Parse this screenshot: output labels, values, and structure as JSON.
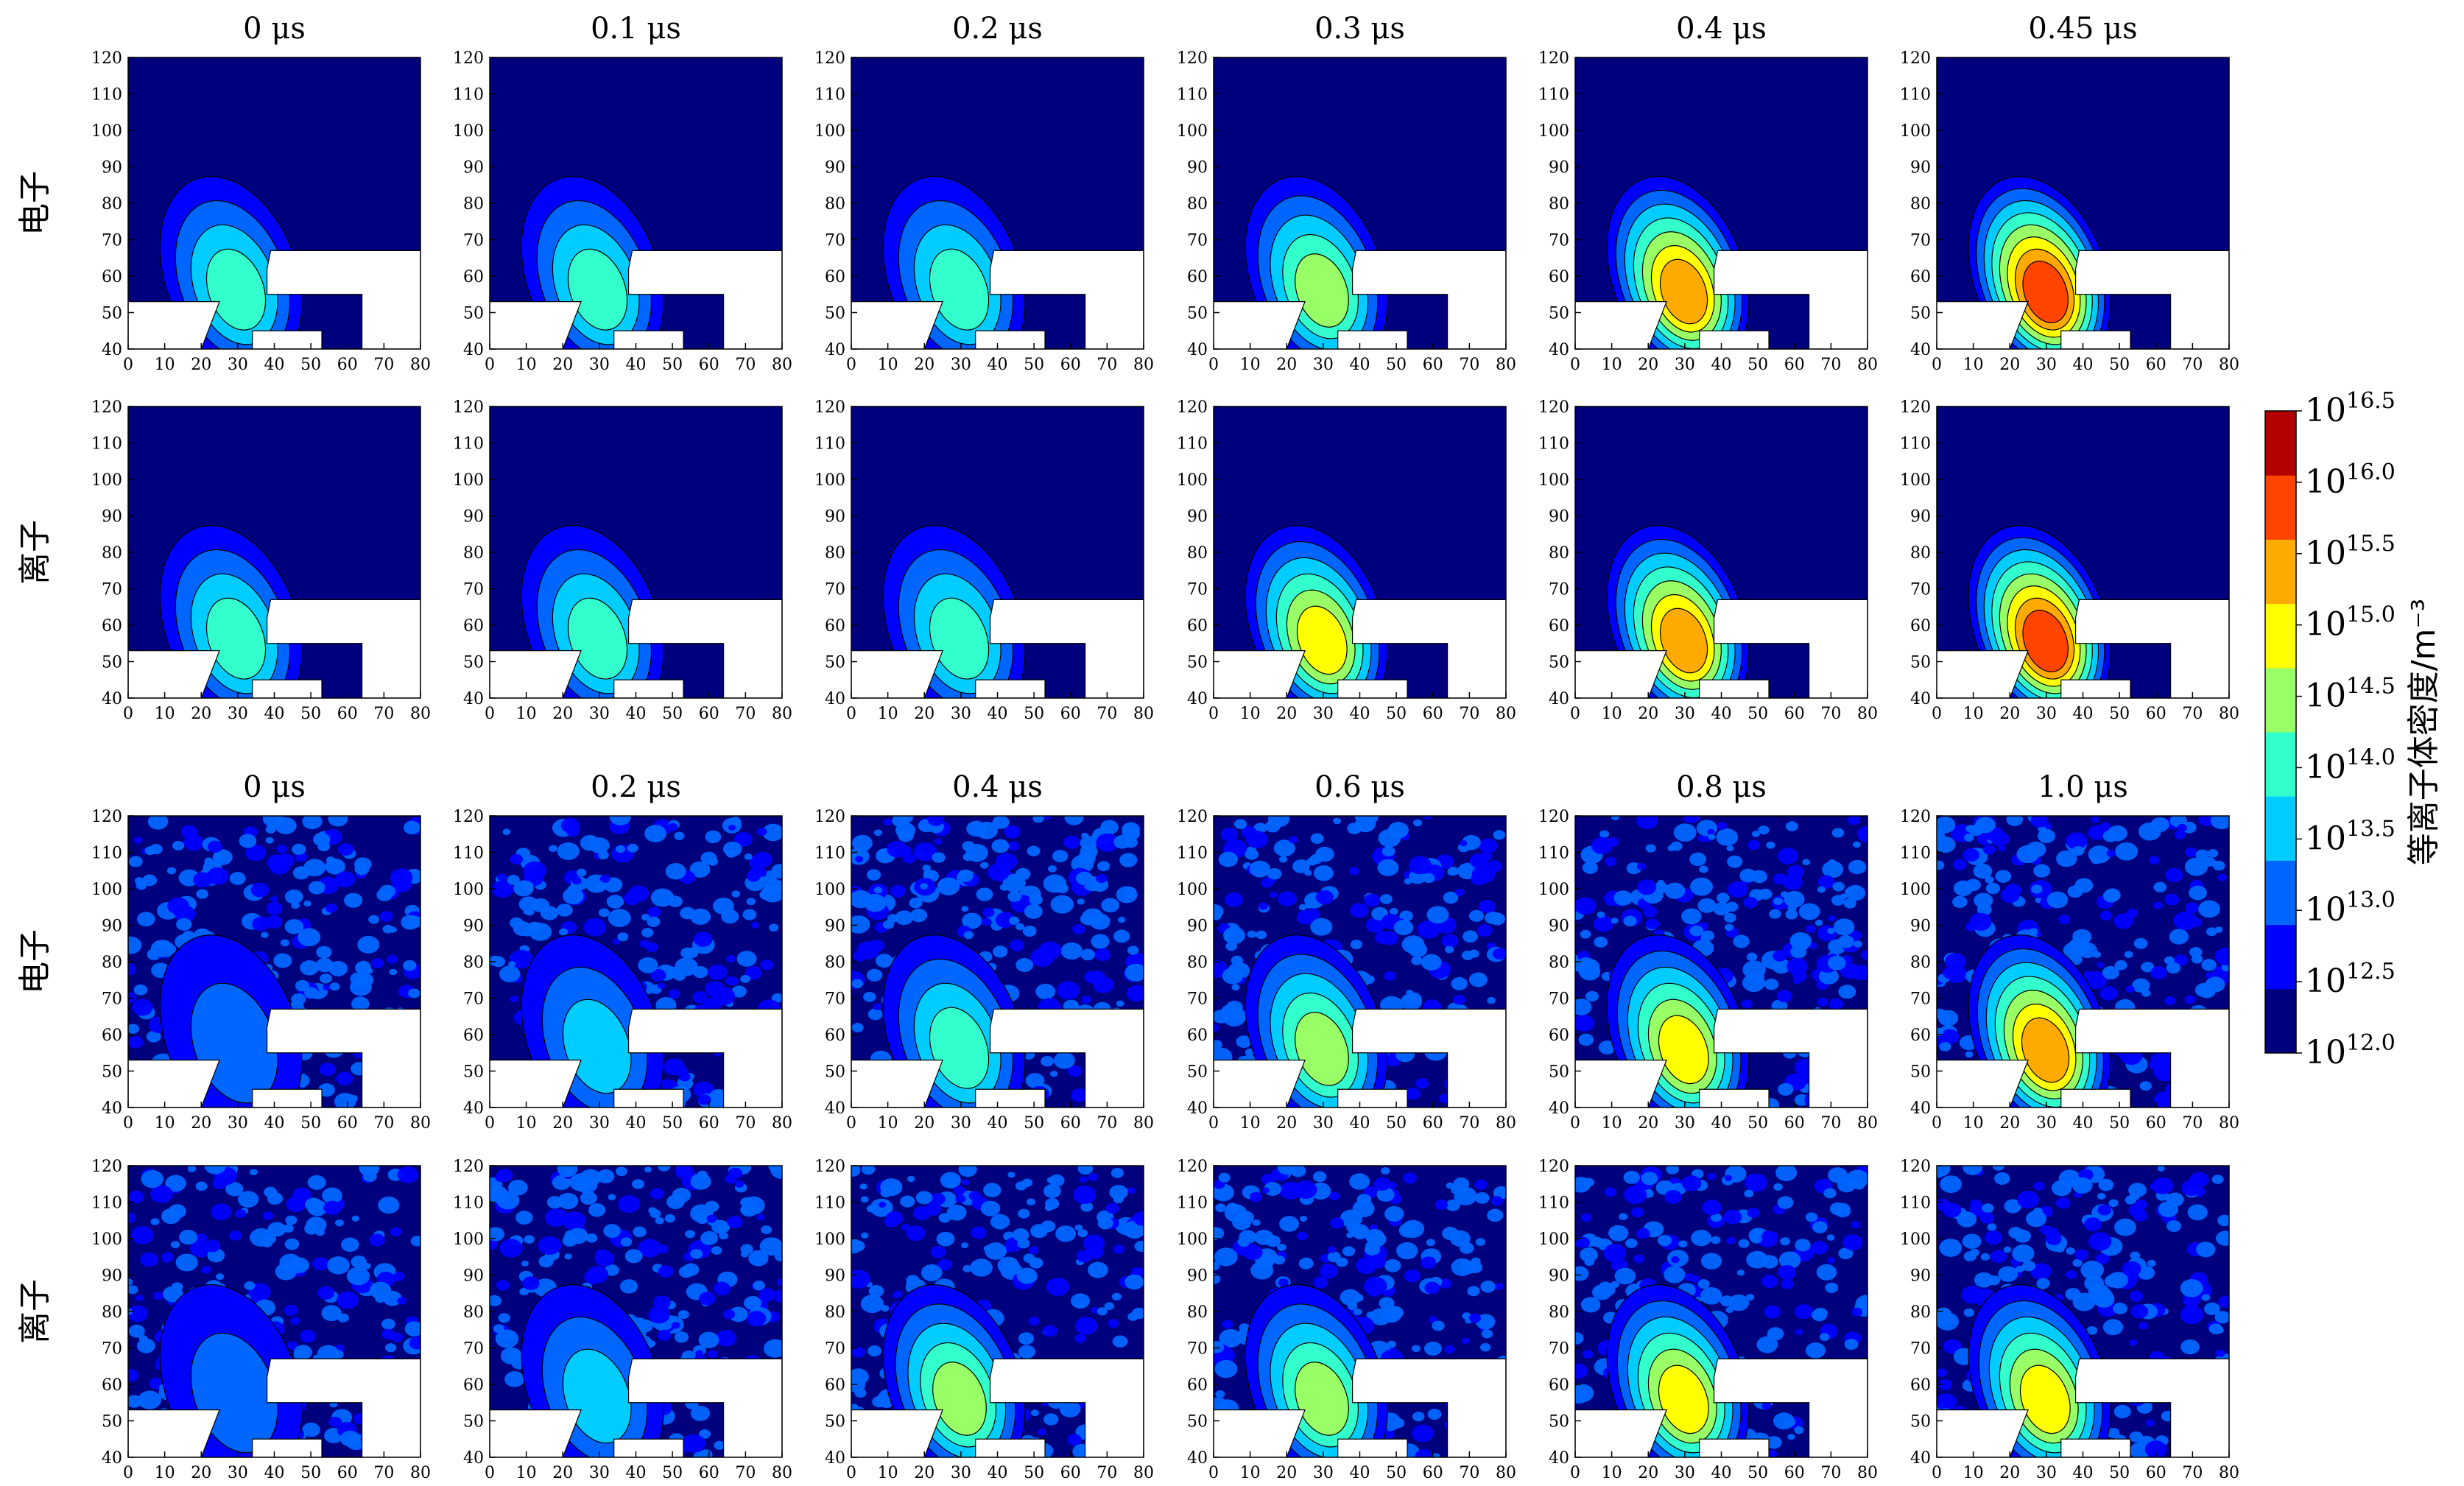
{
  "chart_data": {
    "type": "heatmap",
    "layout": "4 rows x 6 columns of filled-contour panels sharing one colorbar",
    "x_ticks": [
      0,
      10,
      20,
      30,
      40,
      50,
      60,
      70,
      80
    ],
    "y_ticks": [
      40,
      50,
      60,
      70,
      80,
      90,
      100,
      110,
      120
    ],
    "xlim": [
      0,
      80
    ],
    "ylim": [
      40,
      120
    ],
    "colorbar": {
      "label": "等离子体密度/m⁻³",
      "scale": "log10",
      "range": [
        12.0,
        16.5
      ],
      "tick_exponents": [
        "12.0",
        "12.5",
        "13.0",
        "13.5",
        "14.0",
        "14.5",
        "15.0",
        "15.5",
        "16.0",
        "16.5"
      ],
      "tick_base": "10",
      "colors": [
        "#00007f",
        "#0000ff",
        "#0066ff",
        "#00ccff",
        "#33ffcc",
        "#99ff66",
        "#ffff00",
        "#ffaa00",
        "#ff4400",
        "#b30000"
      ]
    },
    "groups": [
      {
        "times": [
          "0 μs",
          "0.1 μs",
          "0.2 μs",
          "0.3 μs",
          "0.4 μs",
          "0.45 μs"
        ],
        "rows": [
          {
            "label": "电子",
            "peak_log_density": [
              14.0,
              14.1,
              14.3,
              14.7,
              15.6,
              16.2
            ]
          },
          {
            "label": "离子",
            "peak_log_density": [
              14.0,
              14.1,
              14.4,
              15.3,
              15.7,
              16.3
            ]
          }
        ]
      },
      {
        "times": [
          "0 μs",
          "0.2 μs",
          "0.4 μs",
          "0.6 μs",
          "0.8 μs",
          "1.0 μs"
        ],
        "rows": [
          {
            "label": "电子",
            "peak_log_density": [
              13.0,
              13.5,
              14.2,
              14.7,
              15.1,
              15.8
            ]
          },
          {
            "label": "离子",
            "peak_log_density": [
              13.0,
              13.6,
              14.7,
              14.9,
              15.1,
              15.0
            ]
          }
        ]
      }
    ]
  }
}
